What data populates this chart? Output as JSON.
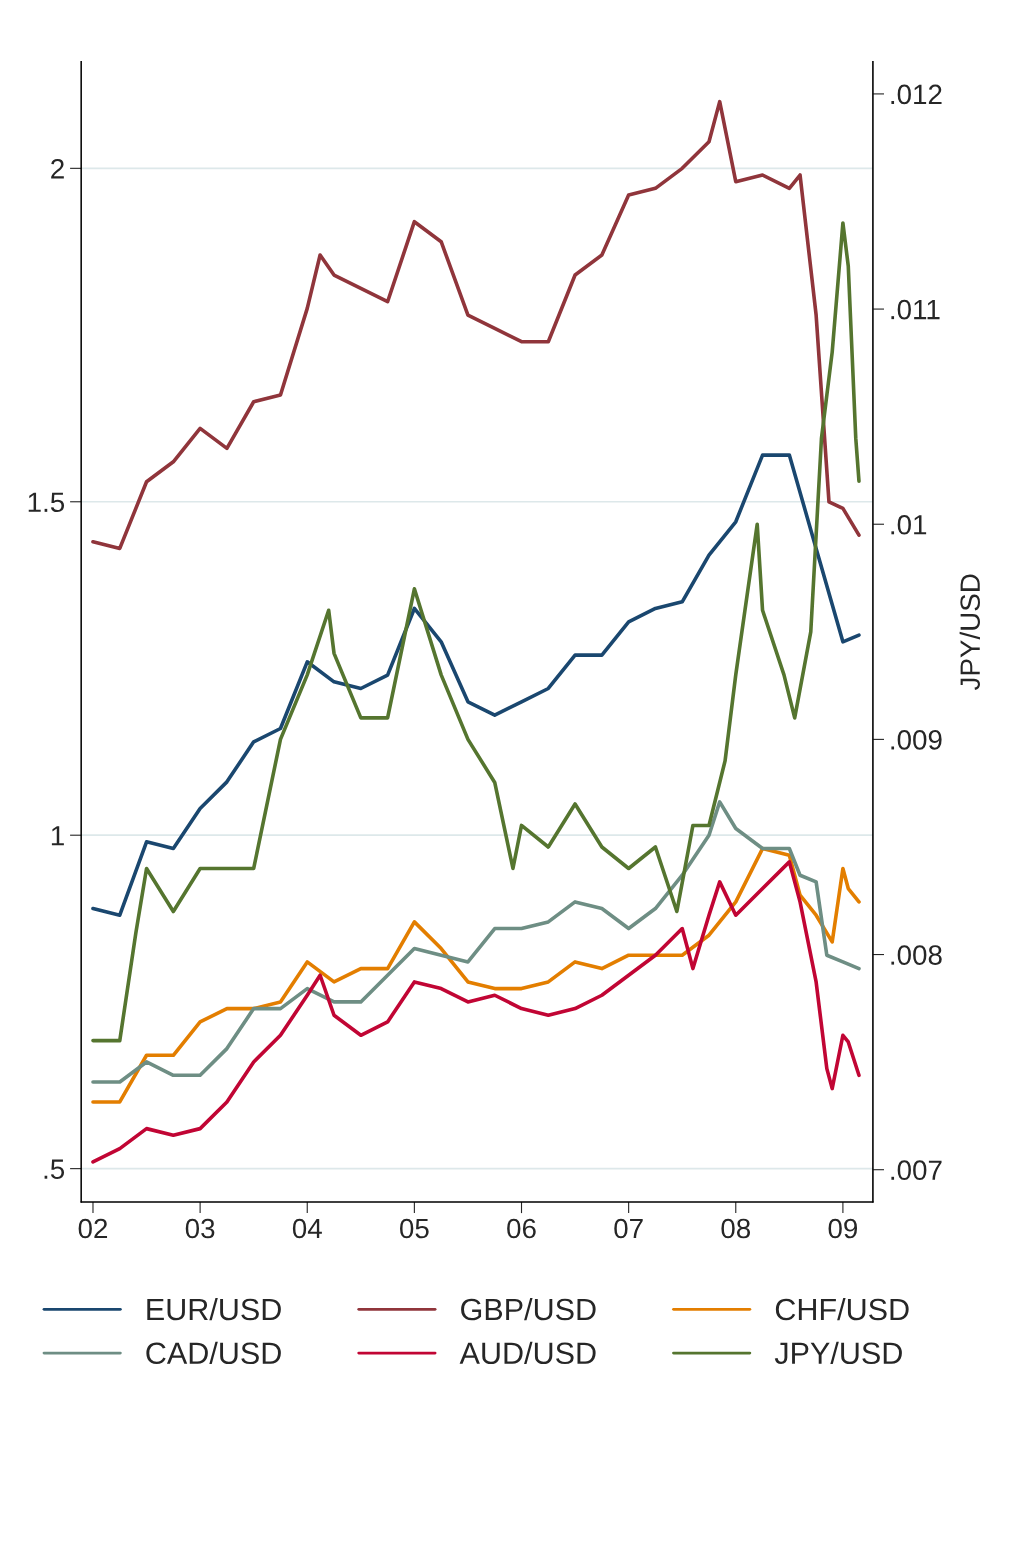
{
  "chart_data": {
    "type": "line",
    "xlim": [
      2001.89,
      2009.28
    ],
    "xticks": [
      {
        "value": 2002,
        "label": "02"
      },
      {
        "value": 2003,
        "label": "03"
      },
      {
        "value": 2004,
        "label": "04"
      },
      {
        "value": 2005,
        "label": "05"
      },
      {
        "value": 2006,
        "label": "06"
      },
      {
        "value": 2007,
        "label": "07"
      },
      {
        "value": 2008,
        "label": "08"
      },
      {
        "value": 2009,
        "label": "09"
      }
    ],
    "ylim": [
      0.45,
      2.16
    ],
    "yticks": [
      {
        "value": 0.5,
        "label": ".5"
      },
      1,
      1.5,
      2
    ],
    "y2lim": [
      0.00685,
      0.01215
    ],
    "y2ticks": [
      {
        "value": 0.007,
        "label": ".007"
      },
      {
        "value": 0.008,
        "label": ".008"
      },
      {
        "value": 0.009,
        "label": ".009"
      },
      {
        "value": 0.01,
        "label": ".01"
      },
      {
        "value": 0.011,
        "label": ".011"
      },
      {
        "value": 0.012,
        "label": ".012"
      }
    ],
    "y2label": "JPY/USD",
    "grid": "y",
    "legend": "bottom",
    "series": [
      {
        "name": "EUR/USD",
        "color": "#1a476f",
        "x": [
          2002.0,
          2002.25,
          2002.5,
          2002.75,
          2003.0,
          2003.25,
          2003.5,
          2003.75,
          2004.0,
          2004.25,
          2004.5,
          2004.75,
          2005.0,
          2005.25,
          2005.5,
          2005.75,
          2006.0,
          2006.25,
          2006.5,
          2006.75,
          2007.0,
          2007.25,
          2007.5,
          2007.75,
          2008.0,
          2008.25,
          2008.5,
          2008.75,
          2009.0,
          2009.15
        ],
        "values": [
          0.89,
          0.88,
          0.99,
          0.98,
          1.04,
          1.08,
          1.14,
          1.16,
          1.26,
          1.23,
          1.22,
          1.24,
          1.34,
          1.29,
          1.2,
          1.18,
          1.2,
          1.22,
          1.27,
          1.27,
          1.32,
          1.34,
          1.35,
          1.42,
          1.47,
          1.57,
          1.57,
          1.43,
          1.29,
          1.3
        ]
      },
      {
        "name": "GBP/USD",
        "color": "#90353b",
        "x": [
          2002.0,
          2002.25,
          2002.5,
          2002.75,
          2003.0,
          2003.25,
          2003.5,
          2003.75,
          2004.0,
          2004.12,
          2004.25,
          2004.5,
          2004.75,
          2005.0,
          2005.25,
          2005.5,
          2005.75,
          2006.0,
          2006.25,
          2006.5,
          2006.75,
          2007.0,
          2007.25,
          2007.5,
          2007.75,
          2007.85,
          2008.0,
          2008.25,
          2008.5,
          2008.6,
          2008.75,
          2008.87,
          2009.0,
          2009.15
        ],
        "values": [
          1.44,
          1.43,
          1.53,
          1.56,
          1.61,
          1.58,
          1.65,
          1.66,
          1.79,
          1.87,
          1.84,
          1.82,
          1.8,
          1.92,
          1.89,
          1.78,
          1.76,
          1.74,
          1.74,
          1.84,
          1.87,
          1.96,
          1.97,
          2.0,
          2.04,
          2.1,
          1.98,
          1.99,
          1.97,
          1.99,
          1.78,
          1.5,
          1.49,
          1.45
        ]
      },
      {
        "name": "CHF/USD",
        "color": "#e37e00",
        "x": [
          2002.0,
          2002.25,
          2002.5,
          2002.75,
          2003.0,
          2003.25,
          2003.5,
          2003.75,
          2004.0,
          2004.25,
          2004.5,
          2004.75,
          2005.0,
          2005.25,
          2005.5,
          2005.75,
          2006.0,
          2006.25,
          2006.5,
          2006.75,
          2007.0,
          2007.25,
          2007.5,
          2007.75,
          2008.0,
          2008.25,
          2008.5,
          2008.6,
          2008.75,
          2008.9,
          2009.0,
          2009.05,
          2009.15
        ],
        "values": [
          0.6,
          0.6,
          0.67,
          0.67,
          0.72,
          0.74,
          0.74,
          0.75,
          0.81,
          0.78,
          0.8,
          0.8,
          0.87,
          0.83,
          0.78,
          0.77,
          0.77,
          0.78,
          0.81,
          0.8,
          0.82,
          0.82,
          0.82,
          0.85,
          0.9,
          0.98,
          0.97,
          0.91,
          0.88,
          0.84,
          0.95,
          0.92,
          0.9
        ]
      },
      {
        "name": "CAD/USD",
        "color": "#6e8e84",
        "x": [
          2002.0,
          2002.25,
          2002.5,
          2002.75,
          2003.0,
          2003.25,
          2003.5,
          2003.75,
          2004.0,
          2004.25,
          2004.5,
          2004.75,
          2005.0,
          2005.25,
          2005.5,
          2005.75,
          2006.0,
          2006.25,
          2006.5,
          2006.75,
          2007.0,
          2007.25,
          2007.5,
          2007.75,
          2007.85,
          2008.0,
          2008.25,
          2008.5,
          2008.6,
          2008.75,
          2008.85,
          2009.0,
          2009.15
        ],
        "values": [
          0.63,
          0.63,
          0.66,
          0.64,
          0.64,
          0.68,
          0.74,
          0.74,
          0.77,
          0.75,
          0.75,
          0.79,
          0.83,
          0.82,
          0.81,
          0.86,
          0.86,
          0.87,
          0.9,
          0.89,
          0.86,
          0.89,
          0.94,
          1.0,
          1.05,
          1.01,
          0.98,
          0.98,
          0.94,
          0.93,
          0.82,
          0.81,
          0.8
        ]
      },
      {
        "name": "AUD/USD",
        "color": "#c10534",
        "x": [
          2002.0,
          2002.25,
          2002.5,
          2002.75,
          2003.0,
          2003.25,
          2003.5,
          2003.75,
          2004.0,
          2004.12,
          2004.25,
          2004.5,
          2004.75,
          2005.0,
          2005.25,
          2005.5,
          2005.75,
          2006.0,
          2006.25,
          2006.5,
          2006.75,
          2007.0,
          2007.25,
          2007.5,
          2007.6,
          2007.75,
          2007.85,
          2008.0,
          2008.25,
          2008.5,
          2008.6,
          2008.75,
          2008.85,
          2008.9,
          2009.0,
          2009.05,
          2009.15
        ],
        "values": [
          0.51,
          0.53,
          0.56,
          0.55,
          0.56,
          0.6,
          0.66,
          0.7,
          0.76,
          0.79,
          0.73,
          0.7,
          0.72,
          0.78,
          0.77,
          0.75,
          0.76,
          0.74,
          0.73,
          0.74,
          0.76,
          0.79,
          0.82,
          0.86,
          0.8,
          0.88,
          0.93,
          0.88,
          0.92,
          0.96,
          0.9,
          0.78,
          0.65,
          0.62,
          0.7,
          0.69,
          0.64
        ]
      },
      {
        "name": "JPY/USD",
        "color": "#55752f",
        "axis": "y2",
        "x": [
          2002.0,
          2002.25,
          2002.4,
          2002.5,
          2002.75,
          2003.0,
          2003.25,
          2003.5,
          2003.75,
          2004.0,
          2004.2,
          2004.25,
          2004.5,
          2004.75,
          2005.0,
          2005.25,
          2005.5,
          2005.75,
          2005.92,
          2006.0,
          2006.25,
          2006.5,
          2006.75,
          2007.0,
          2007.25,
          2007.45,
          2007.6,
          2007.75,
          2007.9,
          2008.0,
          2008.2,
          2008.25,
          2008.45,
          2008.55,
          2008.7,
          2008.8,
          2008.9,
          2009.0,
          2009.05,
          2009.12,
          2009.15
        ],
        "values": [
          0.0076,
          0.0076,
          0.0081,
          0.0084,
          0.0082,
          0.0084,
          0.0084,
          0.0084,
          0.009,
          0.0093,
          0.0096,
          0.0094,
          0.0091,
          0.0091,
          0.0097,
          0.0093,
          0.009,
          0.0088,
          0.0084,
          0.0086,
          0.0085,
          0.0087,
          0.0085,
          0.0084,
          0.0085,
          0.0082,
          0.0086,
          0.0086,
          0.0089,
          0.0093,
          0.01,
          0.0096,
          0.0093,
          0.0091,
          0.0095,
          0.0104,
          0.0108,
          0.0114,
          0.0112,
          0.0104,
          0.0102
        ]
      }
    ]
  }
}
